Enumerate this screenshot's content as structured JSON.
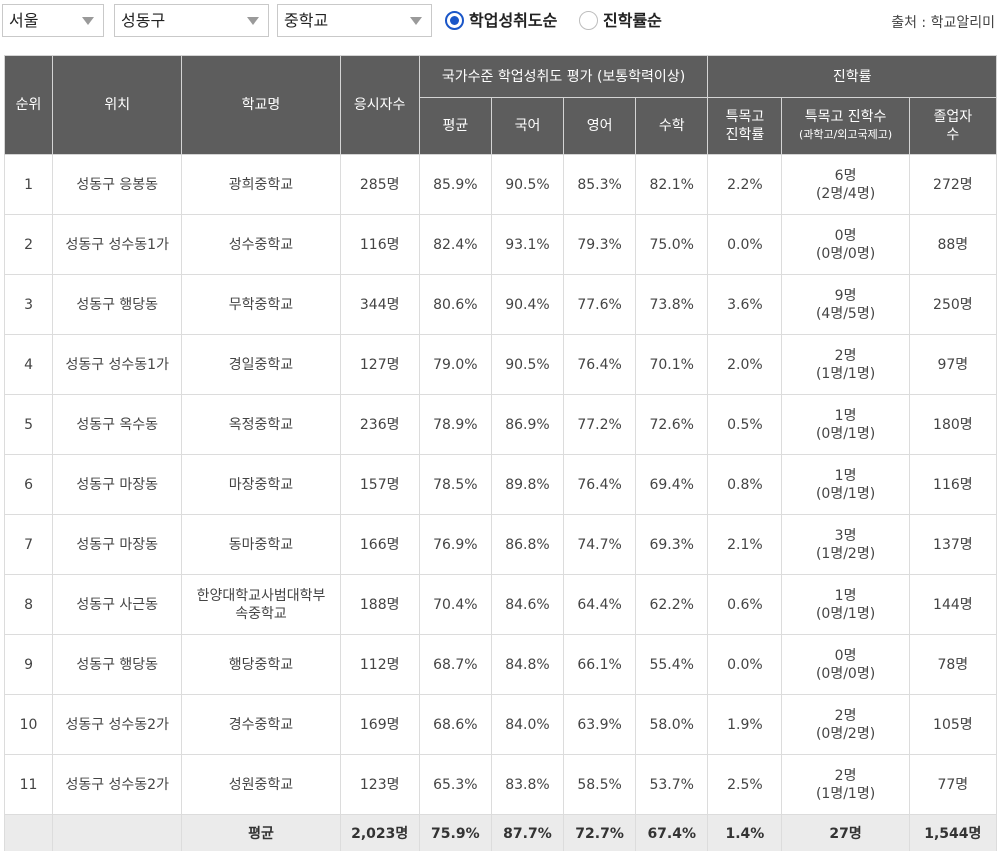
{
  "filters": {
    "region": "서울",
    "district": "성동구",
    "school_level": "중학교",
    "sort_options": [
      {
        "label": "학업성취도순",
        "selected": true
      },
      {
        "label": "진학률순",
        "selected": false
      }
    ],
    "source": "출처 : 학교알리미"
  },
  "table": {
    "headers": {
      "rank": "순위",
      "location": "위치",
      "school": "학교명",
      "applicants": "응시자수",
      "achievement_group": "국가수준 학업성취도 평가 (보통학력이상)",
      "avg": "평균",
      "korean": "국어",
      "english": "영어",
      "math": "수학",
      "advancement_group": "진학률",
      "special_rate_1": "특목고",
      "special_rate_2": "진학률",
      "special_count": "특목고 진학수",
      "special_count_sub": "(과학고/외고국제고)",
      "graduates_1": "졸업자",
      "graduates_2": "수"
    },
    "rows": [
      {
        "rank": "1",
        "location": "성동구 응봉동",
        "school": "광희중학교",
        "applicants": "285명",
        "avg": "85.9%",
        "korean": "90.5%",
        "english": "85.3%",
        "math": "82.1%",
        "special_rate": "2.2%",
        "special_count": "6명",
        "special_detail": "(2명/4명)",
        "graduates": "272명"
      },
      {
        "rank": "2",
        "location": "성동구 성수동1가",
        "school": "성수중학교",
        "applicants": "116명",
        "avg": "82.4%",
        "korean": "93.1%",
        "english": "79.3%",
        "math": "75.0%",
        "special_rate": "0.0%",
        "special_count": "0명",
        "special_detail": "(0명/0명)",
        "graduates": "88명"
      },
      {
        "rank": "3",
        "location": "성동구 행당동",
        "school": "무학중학교",
        "applicants": "344명",
        "avg": "80.6%",
        "korean": "90.4%",
        "english": "77.6%",
        "math": "73.8%",
        "special_rate": "3.6%",
        "special_count": "9명",
        "special_detail": "(4명/5명)",
        "graduates": "250명"
      },
      {
        "rank": "4",
        "location": "성동구 성수동1가",
        "school": "경일중학교",
        "applicants": "127명",
        "avg": "79.0%",
        "korean": "90.5%",
        "english": "76.4%",
        "math": "70.1%",
        "special_rate": "2.0%",
        "special_count": "2명",
        "special_detail": "(1명/1명)",
        "graduates": "97명"
      },
      {
        "rank": "5",
        "location": "성동구 옥수동",
        "school": "옥정중학교",
        "applicants": "236명",
        "avg": "78.9%",
        "korean": "86.9%",
        "english": "77.2%",
        "math": "72.6%",
        "special_rate": "0.5%",
        "special_count": "1명",
        "special_detail": "(0명/1명)",
        "graduates": "180명"
      },
      {
        "rank": "6",
        "location": "성동구 마장동",
        "school": "마장중학교",
        "applicants": "157명",
        "avg": "78.5%",
        "korean": "89.8%",
        "english": "76.4%",
        "math": "69.4%",
        "special_rate": "0.8%",
        "special_count": "1명",
        "special_detail": "(0명/1명)",
        "graduates": "116명"
      },
      {
        "rank": "7",
        "location": "성동구 마장동",
        "school": "동마중학교",
        "applicants": "166명",
        "avg": "76.9%",
        "korean": "86.8%",
        "english": "74.7%",
        "math": "69.3%",
        "special_rate": "2.1%",
        "special_count": "3명",
        "special_detail": "(1명/2명)",
        "graduates": "137명"
      },
      {
        "rank": "8",
        "location": "성동구 사근동",
        "school": "한양대학교사범대학부속중학교",
        "applicants": "188명",
        "avg": "70.4%",
        "korean": "84.6%",
        "english": "64.4%",
        "math": "62.2%",
        "special_rate": "0.6%",
        "special_count": "1명",
        "special_detail": "(0명/1명)",
        "graduates": "144명"
      },
      {
        "rank": "9",
        "location": "성동구 행당동",
        "school": "행당중학교",
        "applicants": "112명",
        "avg": "68.7%",
        "korean": "84.8%",
        "english": "66.1%",
        "math": "55.4%",
        "special_rate": "0.0%",
        "special_count": "0명",
        "special_detail": "(0명/0명)",
        "graduates": "78명"
      },
      {
        "rank": "10",
        "location": "성동구 성수동2가",
        "school": "경수중학교",
        "applicants": "169명",
        "avg": "68.6%",
        "korean": "84.0%",
        "english": "63.9%",
        "math": "58.0%",
        "special_rate": "1.9%",
        "special_count": "2명",
        "special_detail": "(0명/2명)",
        "graduates": "105명"
      },
      {
        "rank": "11",
        "location": "성동구 성수동2가",
        "school": "성원중학교",
        "applicants": "123명",
        "avg": "65.3%",
        "korean": "83.8%",
        "english": "58.5%",
        "math": "53.7%",
        "special_rate": "2.5%",
        "special_count": "2명",
        "special_detail": "(1명/1명)",
        "graduates": "77명"
      }
    ],
    "summary": {
      "label": "평균",
      "applicants": "2,023명",
      "avg": "75.9%",
      "korean": "87.7%",
      "english": "72.7%",
      "math": "67.4%",
      "special_rate": "1.4%",
      "special_count": "27명",
      "graduates": "1,544명"
    }
  }
}
